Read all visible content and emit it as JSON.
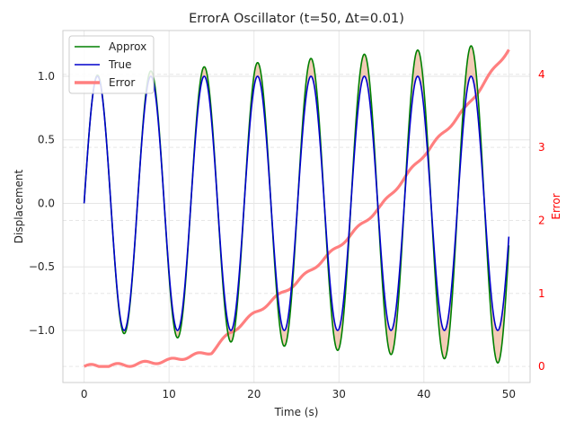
{
  "chart_data": {
    "type": "line",
    "title": "ErrorA Oscillator (t=50, Δt=0.01)",
    "xlabel": "Time (s)",
    "ylabel": "Displacement",
    "ylabel_right": "Error",
    "xlim": [
      -2.5,
      52.5
    ],
    "ylim": [
      -1.41,
      1.36
    ],
    "ylim_right": [
      -0.22,
      4.6
    ],
    "x_ticks": [
      0,
      10,
      20,
      30,
      40,
      50
    ],
    "x_tick_labels": [
      "0",
      "10",
      "20",
      "30",
      "40",
      "50"
    ],
    "y_ticks": [
      -1.0,
      -0.5,
      0.0,
      0.5,
      1.0
    ],
    "y_tick_labels": [
      "−1.0",
      "−0.5",
      "0.0",
      "0.5",
      "1.0"
    ],
    "y_right_ticks": [
      0,
      1,
      2,
      3,
      4
    ],
    "y_right_tick_labels": [
      "0",
      "1",
      "2",
      "3",
      "4"
    ],
    "grid": true,
    "legend_position": "top-left",
    "colors": {
      "approx": "#008000",
      "true": "#0000cc",
      "error": "#ff7f7f",
      "fill": "#e9a27a",
      "right_axis": "#ff0000"
    },
    "series": [
      {
        "name": "Approx",
        "axis": "left",
        "model": "amplitude (1 + 0.00525 t) · sin(t)",
        "t_range": [
          0,
          50
        ],
        "sample_points": [
          [
            0,
            0
          ],
          [
            1.57,
            1.008
          ],
          [
            4.71,
            -1.025
          ],
          [
            7.85,
            1.041
          ],
          [
            14.14,
            1.074
          ],
          [
            20.42,
            1.107
          ],
          [
            26.7,
            1.14
          ],
          [
            32.99,
            1.173
          ],
          [
            39.27,
            1.206
          ],
          [
            45.55,
            1.239
          ],
          [
            48.69,
            -1.256
          ],
          [
            50,
            -0.265
          ]
        ]
      },
      {
        "name": "True",
        "axis": "left",
        "model": "sin(t)",
        "t_range": [
          0,
          50
        ],
        "sample_points": [
          [
            0,
            0
          ],
          [
            1.57,
            1.0
          ],
          [
            4.71,
            -1.0
          ],
          [
            7.85,
            1.0
          ],
          [
            10.99,
            -1.0
          ],
          [
            14.14,
            1.0
          ],
          [
            20.42,
            1.0
          ],
          [
            26.7,
            1.0
          ],
          [
            32.99,
            1.0
          ],
          [
            39.27,
            1.0
          ],
          [
            45.55,
            1.0
          ],
          [
            50,
            -0.262
          ]
        ]
      },
      {
        "name": "Error",
        "axis": "right",
        "sample_points": [
          [
            0,
            0
          ],
          [
            5,
            0.02
          ],
          [
            10,
            0.08
          ],
          [
            15,
            0.2
          ],
          [
            17,
            0.44
          ],
          [
            20,
            0.72
          ],
          [
            25,
            1.15
          ],
          [
            30,
            1.65
          ],
          [
            35,
            2.2
          ],
          [
            40,
            2.9
          ],
          [
            45,
            3.55
          ],
          [
            50,
            4.35
          ]
        ]
      }
    ]
  }
}
